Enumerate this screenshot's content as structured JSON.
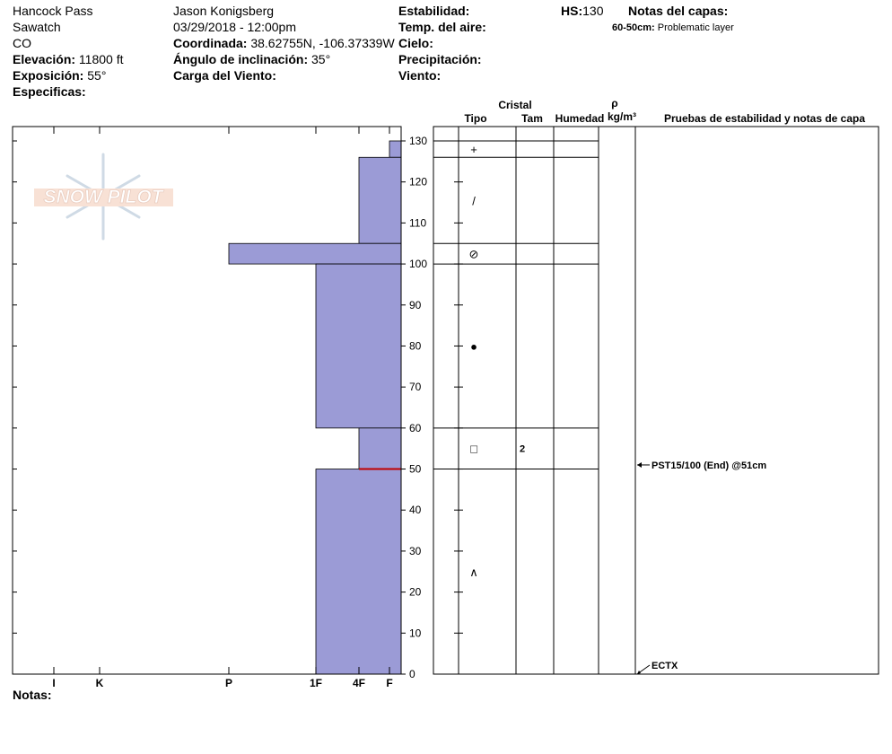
{
  "header": {
    "location": [
      "Hancock Pass",
      "Sawatch",
      "CO"
    ],
    "elevation": {
      "label": "Elevación:",
      "value": "11800 ft"
    },
    "aspect": {
      "label": "Exposición:",
      "value": "55°"
    },
    "specifics": {
      "label": "Especificas:"
    },
    "observer": "Jason Konigsberg",
    "datetime": "03/29/2018 - 12:00pm",
    "coordinates": {
      "label": "Coordinada:",
      "value": "38.62755N, -106.37339W"
    },
    "slope": {
      "label": "Ángulo de inclinación:",
      "value": "35°"
    },
    "wind_loading": {
      "label": "Carga del Viento:"
    },
    "stability": {
      "label": "Estabilidad:"
    },
    "air_temp": {
      "label": "Temp. del aire:"
    },
    "sky": {
      "label": "Cielo:"
    },
    "precip": {
      "label": "Precipitación:"
    },
    "wind": {
      "label": "Viento:"
    },
    "hs": {
      "label": "HS:",
      "value": 130
    },
    "layer_notes": {
      "label": "Notas del capas:",
      "items": [
        {
          "range": "60-50cm:",
          "note": "Problematic layer"
        }
      ]
    }
  },
  "logo": "SNOW PILOT",
  "notes_label": "Notas:",
  "chart_data": {
    "type": "snow-profile",
    "color": "#9b9bd6",
    "depth_lim": [
      0,
      130
    ],
    "depth_ticks": [
      0,
      10,
      20,
      30,
      40,
      50,
      60,
      70,
      80,
      90,
      100,
      110,
      120,
      130
    ],
    "hardness_ticks": [
      "I",
      "K",
      "P",
      "1F",
      "4F",
      "F"
    ],
    "columns": {
      "crystal": "Cristal",
      "type": "Tipo",
      "size": "Tam",
      "moisture": "Humedad",
      "density": "ρ",
      "density_unit": "kg/m³",
      "tests": "Pruebas de estabilidad y notas de capa"
    },
    "layers": [
      {
        "top": 130,
        "bottom": 126,
        "hardness": "F",
        "grain": "+"
      },
      {
        "top": 126,
        "bottom": 105,
        "hardness": "4F",
        "grain": "/"
      },
      {
        "top": 105,
        "bottom": 100,
        "hardness": "P",
        "grain": "⊘"
      },
      {
        "top": 100,
        "bottom": 60,
        "hardness": "1F",
        "grain": "●"
      },
      {
        "top": 60,
        "bottom": 50,
        "hardness": "4F",
        "grain": "□",
        "size": 2
      },
      {
        "top": 50,
        "bottom": 0,
        "hardness": "1F",
        "grain": "∧"
      }
    ],
    "marked_depth": 50,
    "marked_color": "#c00000",
    "stability_tests": [
      {
        "depth": 51,
        "label": "PST15/100 (End) @51cm"
      },
      {
        "depth": 0,
        "label": "ECTX"
      }
    ]
  }
}
